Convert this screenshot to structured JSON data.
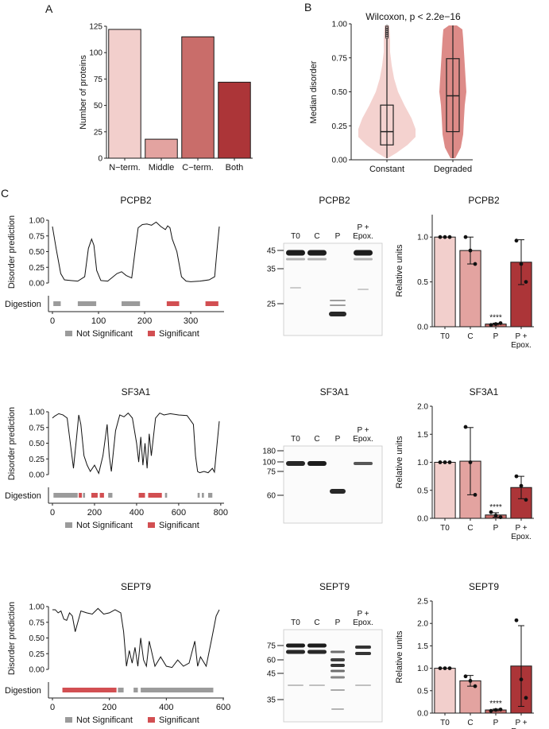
{
  "panels": {
    "a": "A",
    "b": "B",
    "c": "C"
  },
  "colors": {
    "c1": "#f2cfcc",
    "c2": "#e3a3a0",
    "c3": "#c96d6a",
    "c4": "#ac3538",
    "violin1": "#f4d2cf",
    "violin2": "#dd8b88",
    "sig": "#d24f52",
    "nonsig": "#9b9b9b"
  },
  "chart_data": [
    {
      "id": "A",
      "type": "bar",
      "categories": [
        "N−term.",
        "Middle",
        "C−term.",
        "Both"
      ],
      "values": [
        122,
        18,
        115,
        72
      ],
      "ylabel": "Number of proteins",
      "ylim": [
        0,
        125
      ],
      "yticks": [
        0,
        25,
        50,
        75,
        100,
        125
      ]
    },
    {
      "id": "B",
      "type": "violin",
      "title": "Wilcoxon, p < 2.2e−16",
      "categories": [
        "Constant",
        "Degraded"
      ],
      "ylabel": "Median disorder",
      "ylim": [
        0,
        1
      ],
      "yticks": [
        "0.00",
        "0.25",
        "0.50",
        "0.75",
        "1.00"
      ],
      "box": [
        {
          "min": 0.0,
          "q1": 0.1,
          "median": 0.2,
          "q3": 0.4,
          "max": 0.9
        },
        {
          "min": 0.0,
          "q1": 0.2,
          "median": 0.47,
          "q3": 0.75,
          "max": 1.0
        }
      ],
      "outliers": [
        0.91,
        0.92,
        0.93,
        0.94,
        0.95,
        0.96,
        0.97,
        0.98,
        0.99
      ]
    },
    {
      "id": "C-PCPB2-disorder",
      "type": "line",
      "title": "PCPB2",
      "ylabel": "Disorder prediction",
      "ylim": [
        0,
        1
      ],
      "yticks": [
        "0.00",
        "0.25",
        "0.50",
        "0.75",
        "1.00"
      ],
      "xlim": [
        0,
        362
      ],
      "xticks": [
        0,
        100,
        200,
        300
      ],
      "track_label": "Digestion",
      "x": [
        0,
        8,
        18,
        26,
        40,
        55,
        70,
        78,
        85,
        90,
        96,
        105,
        120,
        140,
        150,
        160,
        172,
        180,
        186,
        195,
        205,
        215,
        225,
        235,
        245,
        250,
        255,
        260,
        270,
        280,
        290,
        300,
        320,
        340,
        352,
        358,
        362
      ],
      "y": [
        0.9,
        0.55,
        0.15,
        0.05,
        0.04,
        0.03,
        0.1,
        0.55,
        0.7,
        0.6,
        0.2,
        0.04,
        0.03,
        0.15,
        0.18,
        0.12,
        0.08,
        0.55,
        0.88,
        0.93,
        0.94,
        0.92,
        0.97,
        0.9,
        0.85,
        0.91,
        0.88,
        0.7,
        0.5,
        0.1,
        0.03,
        0.02,
        0.03,
        0.05,
        0.1,
        0.6,
        0.9
      ],
      "segments": [
        [
          2,
          18,
          0
        ],
        [
          55,
          95,
          0
        ],
        [
          150,
          190,
          0
        ],
        [
          248,
          275,
          1
        ],
        [
          332,
          360,
          1
        ]
      ]
    },
    {
      "id": "C-SF3A1-disorder",
      "type": "line",
      "title": "SF3A1",
      "ylabel": "Disorder prediction",
      "ylim": [
        0,
        1
      ],
      "yticks": [
        "0.00",
        "0.25",
        "0.50",
        "0.75",
        "1.00"
      ],
      "xlim": [
        0,
        793
      ],
      "xticks": [
        0,
        200,
        400,
        600,
        800
      ],
      "track_label": "Digestion",
      "x": [
        0,
        10,
        30,
        50,
        70,
        85,
        100,
        115,
        125,
        135,
        150,
        165,
        180,
        200,
        220,
        240,
        260,
        270,
        280,
        300,
        320,
        340,
        360,
        380,
        400,
        410,
        420,
        430,
        440,
        450,
        460,
        470,
        490,
        510,
        530,
        560,
        600,
        640,
        670,
        680,
        690,
        700,
        720,
        740,
        760,
        770,
        780,
        793
      ],
      "y": [
        0.9,
        0.93,
        0.97,
        0.95,
        0.9,
        0.5,
        0.1,
        0.6,
        0.95,
        0.8,
        0.3,
        0.15,
        0.05,
        0.15,
        0.02,
        0.3,
        0.8,
        0.3,
        0.05,
        0.7,
        0.95,
        0.92,
        0.98,
        0.9,
        0.5,
        0.2,
        0.6,
        0.15,
        0.5,
        0.1,
        0.65,
        0.3,
        0.9,
        0.98,
        0.95,
        0.97,
        0.95,
        0.94,
        0.8,
        0.3,
        0.05,
        0.03,
        0.05,
        0.03,
        0.1,
        0.04,
        0.4,
        0.85
      ],
      "segments": [
        [
          5,
          120,
          0
        ],
        [
          125,
          140,
          1
        ],
        [
          145,
          155,
          0
        ],
        [
          185,
          215,
          1
        ],
        [
          225,
          245,
          1
        ],
        [
          265,
          285,
          0
        ],
        [
          410,
          440,
          1
        ],
        [
          455,
          520,
          1
        ],
        [
          535,
          545,
          0
        ],
        [
          690,
          700,
          0
        ],
        [
          710,
          720,
          0
        ],
        [
          740,
          760,
          0
        ]
      ]
    },
    {
      "id": "C-SEPT9-disorder",
      "type": "line",
      "title": "SEPT9",
      "ylabel": "Disorder prediction",
      "ylim": [
        0,
        1
      ],
      "yticks": [
        "0.00",
        "0.25",
        "0.50",
        "0.75",
        "1.00"
      ],
      "xlim": [
        0,
        586
      ],
      "xticks": [
        0,
        200,
        400,
        600
      ],
      "track_label": "Digestion",
      "x": [
        0,
        10,
        20,
        30,
        40,
        50,
        60,
        70,
        80,
        100,
        120,
        140,
        160,
        180,
        200,
        220,
        240,
        250,
        260,
        270,
        280,
        290,
        300,
        310,
        320,
        330,
        340,
        360,
        380,
        400,
        420,
        440,
        460,
        480,
        500,
        510,
        520,
        540,
        560,
        575,
        586
      ],
      "y": [
        0.95,
        0.95,
        0.9,
        0.93,
        0.8,
        0.78,
        0.9,
        0.85,
        0.6,
        0.93,
        0.9,
        0.88,
        0.97,
        0.88,
        0.9,
        0.95,
        0.9,
        0.6,
        0.05,
        0.3,
        0.1,
        0.35,
        0.05,
        0.5,
        0.15,
        0.05,
        0.45,
        0.05,
        0.2,
        0.05,
        0.03,
        0.15,
        0.05,
        0.1,
        0.45,
        0.05,
        0.2,
        0.05,
        0.5,
        0.85,
        0.95
      ],
      "segments": [
        [
          35,
          225,
          1
        ],
        [
          230,
          250,
          0
        ],
        [
          285,
          300,
          0
        ],
        [
          310,
          565,
          0
        ]
      ]
    },
    {
      "id": "C-PCPB2-bars",
      "type": "bar",
      "title": "PCPB2",
      "categories": [
        "T0",
        "C",
        "P",
        "P +\nEpox."
      ],
      "values": [
        1.0,
        0.85,
        0.03,
        0.72
      ],
      "err": [
        0,
        0.15,
        0.01,
        0.25
      ],
      "points": [
        [
          1.0,
          1.0,
          1.0
        ],
        [
          1.0,
          0.85,
          0.7
        ],
        [
          0.02,
          0.03,
          0.04
        ],
        [
          0.96,
          0.7,
          0.5
        ]
      ],
      "ylabel": "Relative units",
      "ylim": [
        0,
        1.25
      ],
      "yticks": [
        "0.0",
        "0.5",
        "1.0"
      ],
      "ytick_values": [
        0,
        0.5,
        1.0
      ],
      "annotation": "****",
      "annotation_index": 2
    },
    {
      "id": "C-SF3A1-bars",
      "type": "bar",
      "title": "SF3A1",
      "categories": [
        "T0",
        "C",
        "P",
        "P +\nEpox."
      ],
      "values": [
        1.0,
        1.02,
        0.06,
        0.55
      ],
      "err": [
        0,
        0.6,
        0.04,
        0.2
      ],
      "points": [
        [
          1.0,
          1.0,
          1.0
        ],
        [
          1.63,
          1.0,
          0.42
        ],
        [
          0.11,
          0.05,
          0.02
        ],
        [
          0.75,
          0.58,
          0.33
        ]
      ],
      "ylabel": "Relative units",
      "ylim": [
        0,
        2.0
      ],
      "yticks": [
        "0.0",
        "0.5",
        "1.0",
        "1.5",
        "2.0"
      ],
      "ytick_values": [
        0,
        0.5,
        1.0,
        1.5,
        2.0
      ],
      "annotation": "****",
      "annotation_index": 2
    },
    {
      "id": "C-SEPT9-bars",
      "type": "bar",
      "title": "SEPT9",
      "categories": [
        "T0",
        "C",
        "P",
        "P +\nEpox."
      ],
      "values": [
        1.0,
        0.72,
        0.07,
        1.05
      ],
      "err": [
        0,
        0.12,
        0.02,
        0.9
      ],
      "points": [
        [
          1.0,
          1.0,
          1.0
        ],
        [
          0.82,
          0.72,
          0.6
        ],
        [
          0.05,
          0.07,
          0.08
        ],
        [
          2.07,
          0.75,
          0.34
        ]
      ],
      "ylabel": "Relative units",
      "ylim": [
        0,
        2.5
      ],
      "yticks": [
        "0.0",
        "0.5",
        "1.0",
        "1.5",
        "2.0",
        "2.5"
      ],
      "ytick_values": [
        0,
        0.5,
        1.0,
        1.5,
        2.0,
        2.5
      ],
      "annotation": "****",
      "annotation_index": 2
    }
  ],
  "blots": [
    {
      "title": "PCPB2",
      "lanes": [
        "T0",
        "C",
        "P",
        "P +\nEpox."
      ],
      "markers": [
        "45",
        "35",
        "25"
      ],
      "marker_kda": [
        45,
        35,
        25
      ]
    },
    {
      "title": "SF3A1",
      "lanes": [
        "T0",
        "C",
        "P",
        "P +\nEpox."
      ],
      "markers": [
        "180",
        "100",
        "75",
        "60"
      ],
      "marker_kda": [
        180,
        100,
        75,
        60
      ]
    },
    {
      "title": "SEPT9",
      "lanes": [
        "T0",
        "C",
        "P",
        "P +\nEpox."
      ],
      "markers": [
        "75",
        "60",
        "45",
        "35"
      ],
      "marker_kda": [
        75,
        60,
        45,
        35
      ]
    }
  ],
  "legend": {
    "nonsig": "Not Significant",
    "sig": "Significant"
  }
}
